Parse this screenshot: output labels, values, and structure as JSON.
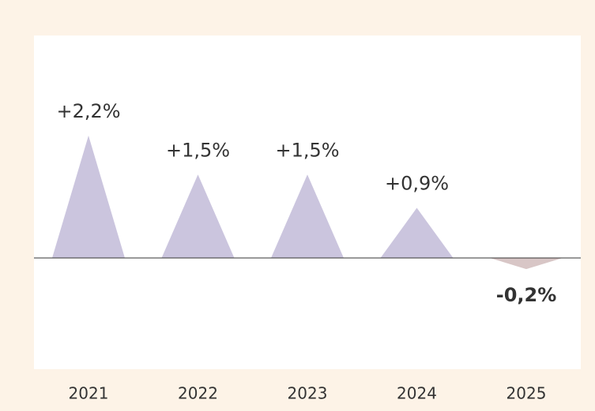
{
  "chart_data": {
    "type": "bar",
    "categories": [
      "2021",
      "2022",
      "2023",
      "2024",
      "2025"
    ],
    "values": [
      2.2,
      1.5,
      1.5,
      0.9,
      -0.2
    ],
    "value_labels": [
      "+2,2%",
      "+1,5%",
      "+1,5%",
      "+0,9%",
      "-0,2%"
    ],
    "positive_color": "#cbc5de",
    "negative_color": "#d8c6c6",
    "ylim": [
      -2,
      4
    ]
  }
}
